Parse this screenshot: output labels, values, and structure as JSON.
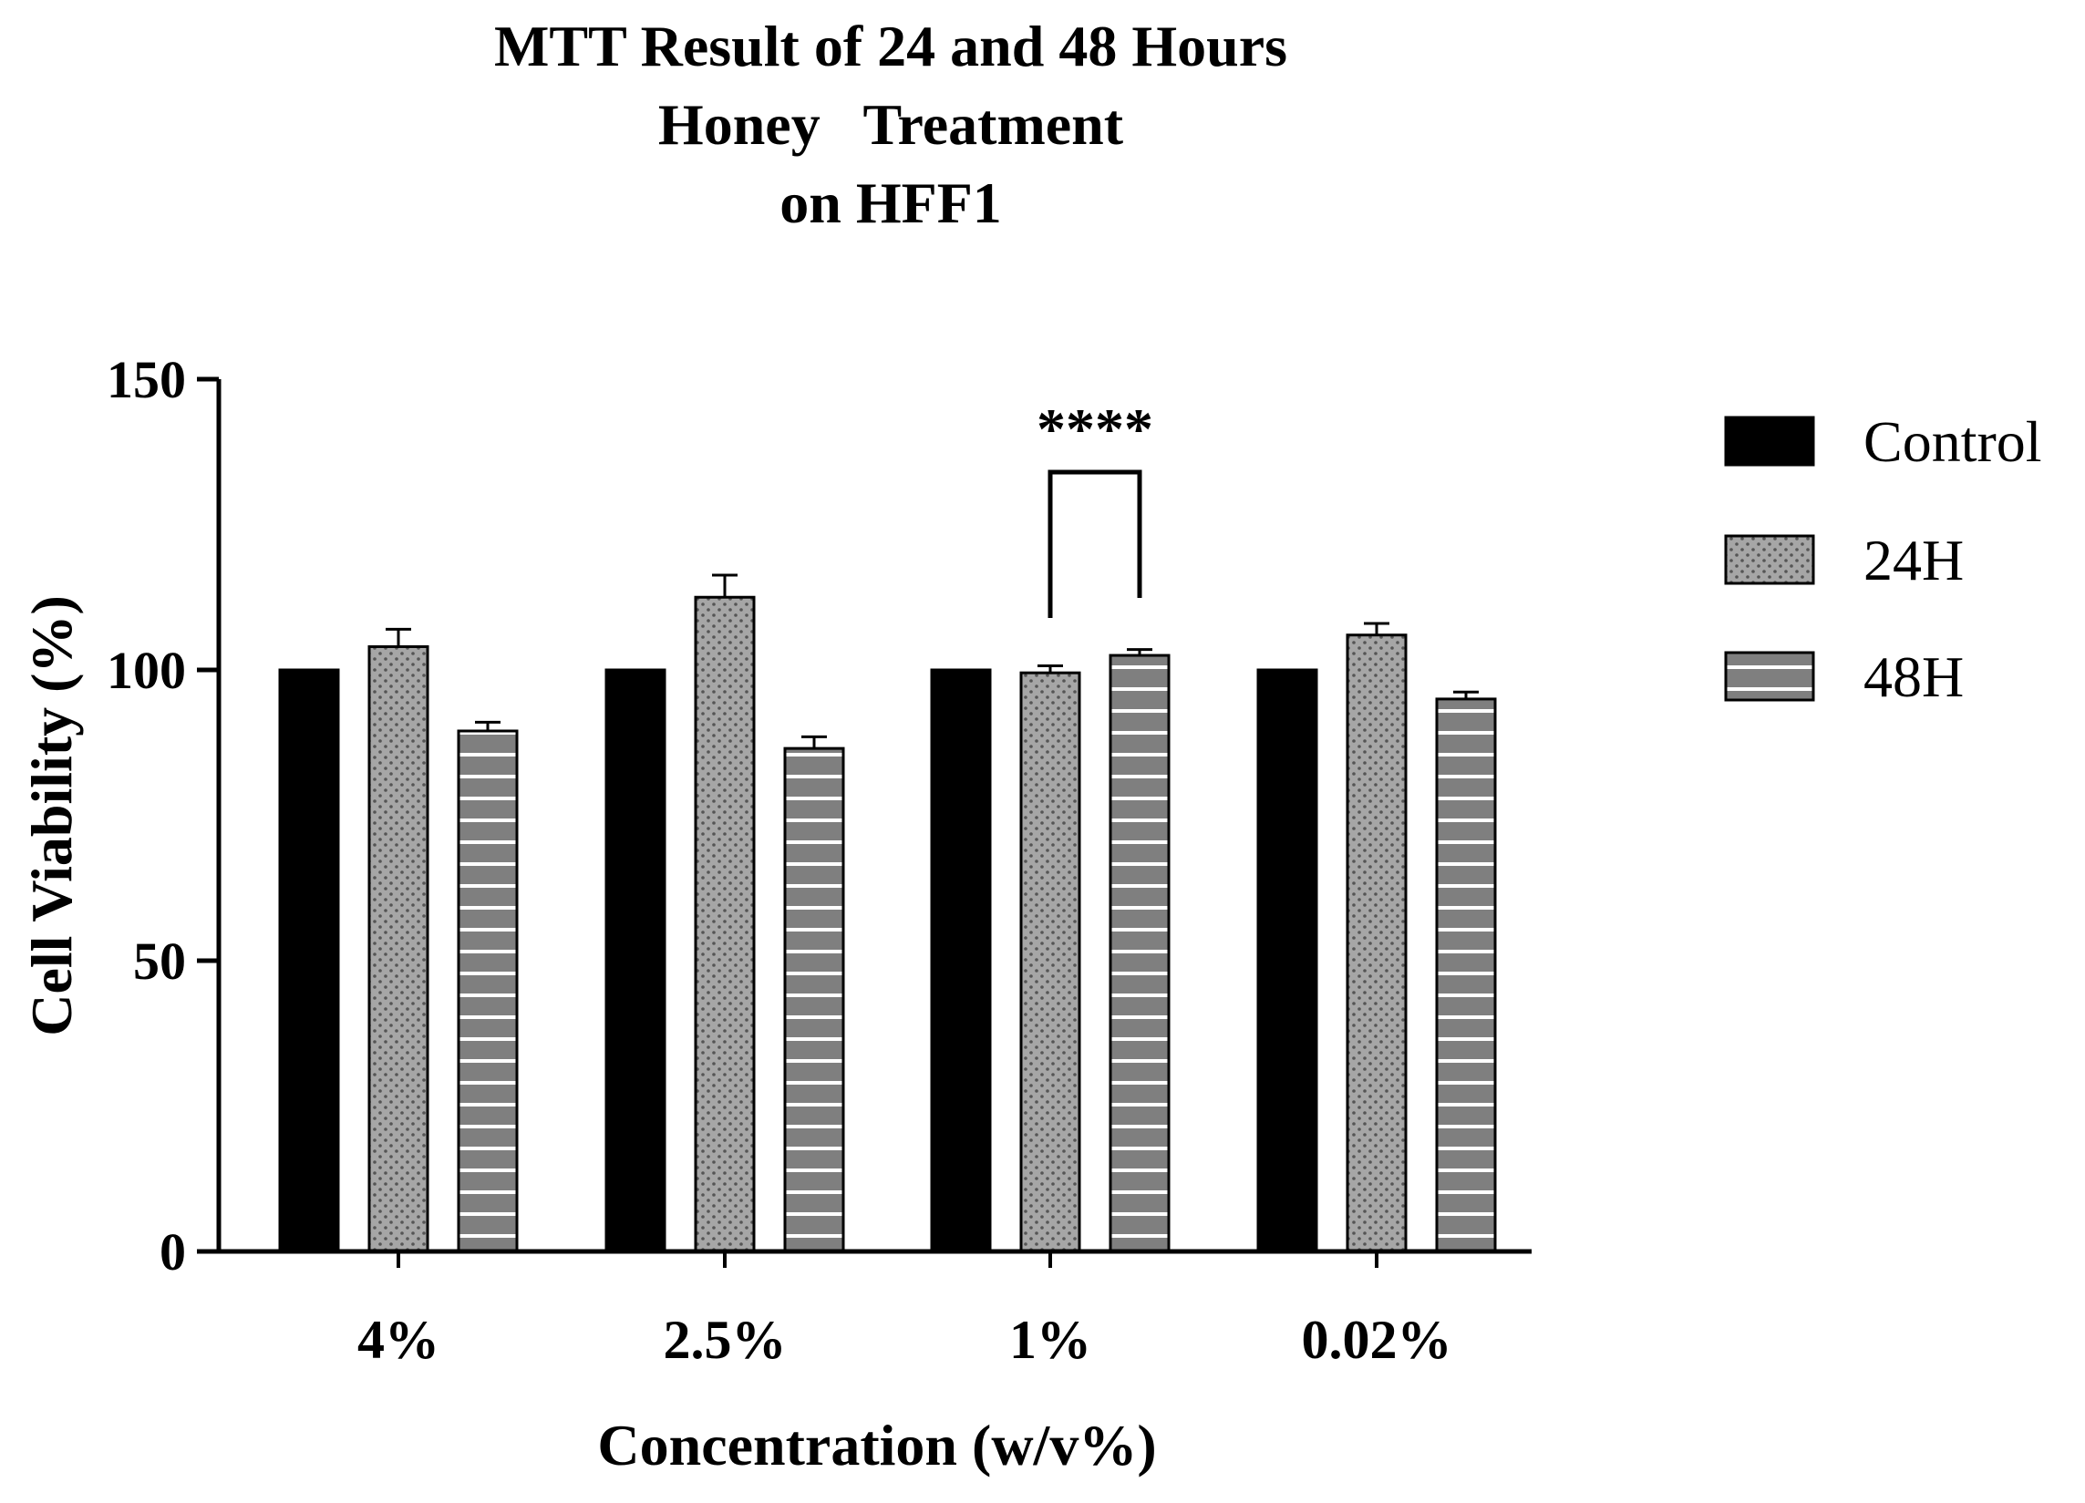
{
  "chart_data": {
    "type": "bar",
    "title": [
      "MTT Result of 24 and 48 Hours",
      "Honey   Treatment",
      "on HFF1"
    ],
    "xlabel": "Concentration (w/v%)",
    "ylabel": "Cell Viability (%)",
    "ylim": [
      0,
      150
    ],
    "yticks": [
      0,
      50,
      100,
      150
    ],
    "categories": [
      "4%",
      "2.5%",
      "1%",
      "0.02%"
    ],
    "series": [
      {
        "name": "Control",
        "values": [
          100,
          100,
          100,
          100
        ],
        "errors": [
          0,
          0,
          0,
          0
        ],
        "pattern": "solid",
        "color": "#000000"
      },
      {
        "name": "24H",
        "values": [
          104,
          112.5,
          99.5,
          106
        ],
        "errors": [
          3,
          3.8,
          1.2,
          2
        ],
        "pattern": "dots",
        "color": "#a6a6a6"
      },
      {
        "name": "48H",
        "values": [
          89.5,
          86.5,
          102.5,
          95
        ],
        "errors": [
          1.5,
          2,
          1,
          1.2
        ],
        "pattern": "stripes",
        "color": "#7f7f7f"
      }
    ],
    "significance": [
      {
        "category": "1%",
        "between": [
          "24H",
          "48H"
        ],
        "label": "****"
      }
    ],
    "legend_position": "right",
    "grid": false
  }
}
